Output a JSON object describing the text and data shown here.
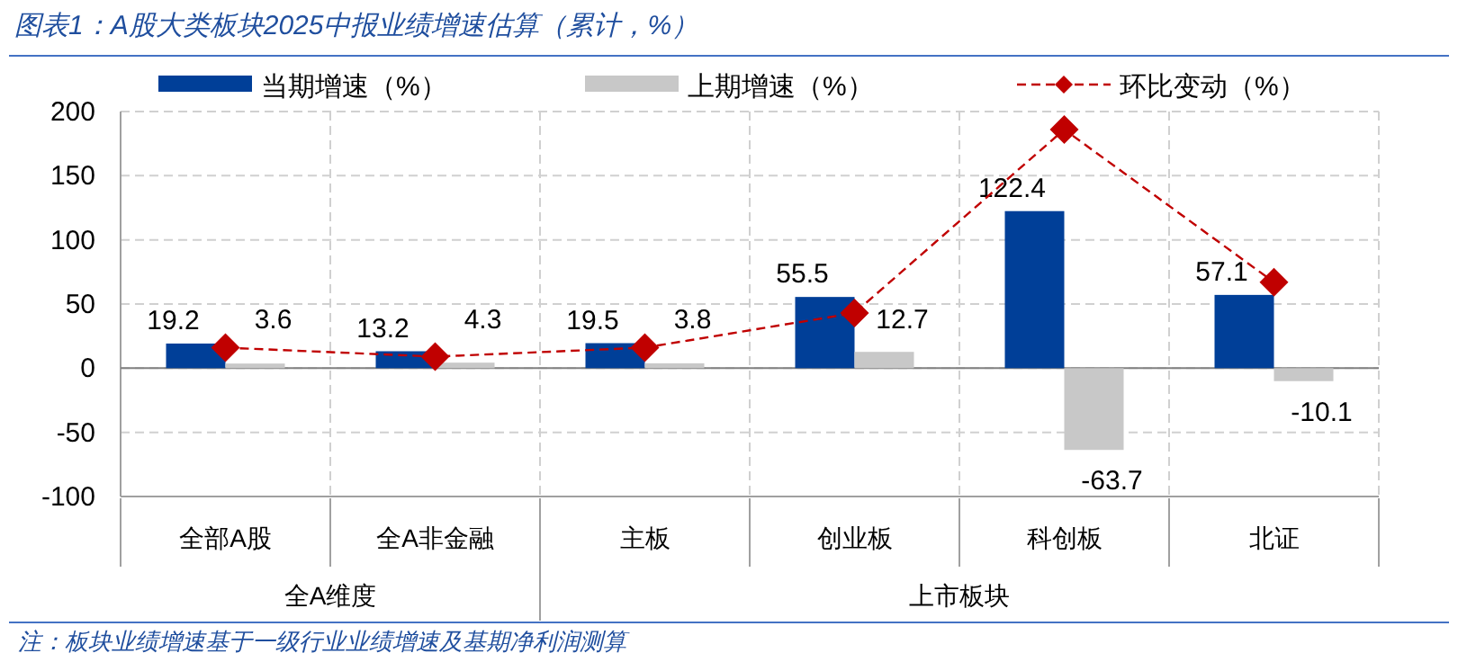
{
  "chart_data": {
    "type": "bar",
    "title": "图表1：A股大类板块2025中报业绩增速估算（累计，%）",
    "categories": [
      "全部A股",
      "全A非金融",
      "主板",
      "创业板",
      "科创板",
      "北证"
    ],
    "series": [
      {
        "name": "当期增速（%）",
        "color": "#003f98",
        "values": [
          19.2,
          13.2,
          19.5,
          55.5,
          122.4,
          57.1
        ],
        "value_labels": [
          "19.2",
          "13.2",
          "19.5",
          "55.5",
          "122.4",
          "57.1"
        ]
      },
      {
        "name": "上期增速（%）",
        "color": "#c8c8c8",
        "values": [
          3.6,
          4.3,
          3.8,
          12.7,
          -63.7,
          -10.1
        ],
        "value_labels": [
          "3.6",
          "4.3",
          "3.8",
          "12.7",
          "-63.7",
          "-10.1"
        ]
      },
      {
        "name": "环比变动（%）",
        "type": "line",
        "color": "#c00000",
        "marker": "diamond",
        "line_style": "dashed",
        "values": [
          16,
          9,
          16,
          43,
          186,
          67
        ]
      }
    ],
    "ylim": [
      -100,
      200
    ],
    "yticks": [
      -100,
      -50,
      0,
      50,
      100,
      150,
      200
    ],
    "grid": true,
    "legend": "top",
    "annotations": [
      "全A维度",
      "上市板块",
      "注：板块业绩增速基于一级行业业绩增速及基期净利润测算"
    ]
  }
}
